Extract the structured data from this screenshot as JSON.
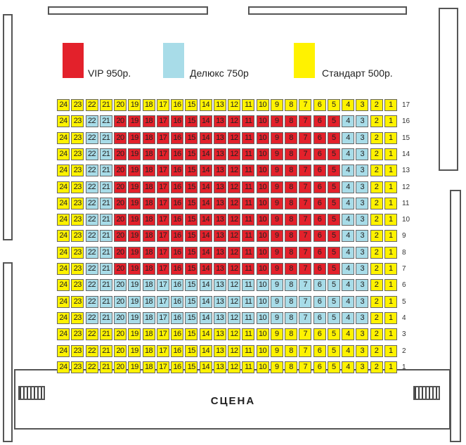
{
  "legend": [
    {
      "label": "VIP 950р.",
      "color": "#e3212b"
    },
    {
      "label": "Делюкс 750р",
      "color": "#a8dce8"
    },
    {
      "label": "Стандарт 500р.",
      "color": "#fff200"
    }
  ],
  "stage_label": "СЦЕНА",
  "seat_numbers": [
    24,
    23,
    22,
    21,
    20,
    19,
    18,
    17,
    16,
    15,
    14,
    13,
    12,
    11,
    10,
    9,
    8,
    7,
    6,
    5,
    4,
    3,
    2,
    1
  ],
  "rows": [
    {
      "row": "17",
      "seats": "YYYYYYYYYYYYYYYYYYYYYYYY"
    },
    {
      "row": "16",
      "seats": "YYBBVVVVVVVVVVVVVVVVBBYY"
    },
    {
      "row": "15",
      "seats": "YYBBVVVVVVVVVVVVVVVVBBYY"
    },
    {
      "row": "14",
      "seats": "YYBBVVVVVVVVVVVVVVVVBBYY"
    },
    {
      "row": "13",
      "seats": "YYBBVVVVVVVVVVVVVVVVBBYY"
    },
    {
      "row": "12",
      "seats": "YYBBVVVVVVVVVVVVVVVVBBYY"
    },
    {
      "row": "11",
      "seats": "YYBBVVVVVVVVVVVVVVVVBBYY"
    },
    {
      "row": "10",
      "seats": "YYBBVVVVVVVVVVVVVVVVBBYY"
    },
    {
      "row": "9",
      "seats": "YYBBVVVVVVVVVVVVVVVVBBYY"
    },
    {
      "row": "8",
      "seats": "YYBBVVVVVVVVVVVVVVVVBBYY"
    },
    {
      "row": "7",
      "seats": "YYBBVVVVVVVVVVVVVVVVBBYY"
    },
    {
      "row": "6",
      "seats": "YYBBBBBBBBBBBBBBBBBBBBYY"
    },
    {
      "row": "5",
      "seats": "YYBBBBBBBBBBBBBBBBBBBBYY"
    },
    {
      "row": "4",
      "seats": "YYBBBBBBBBBBBBBBBBBBBBYY"
    },
    {
      "row": "3",
      "seats": "YYYYYYYYYYYYYYYYYYYYYYYY"
    },
    {
      "row": "2",
      "seats": "YYYYYYYYYYYYYYYYYYYYYYYY"
    },
    {
      "row": "1",
      "seats": "YYYYYYYYYYYYYYYYYYYYYYYY"
    }
  ]
}
